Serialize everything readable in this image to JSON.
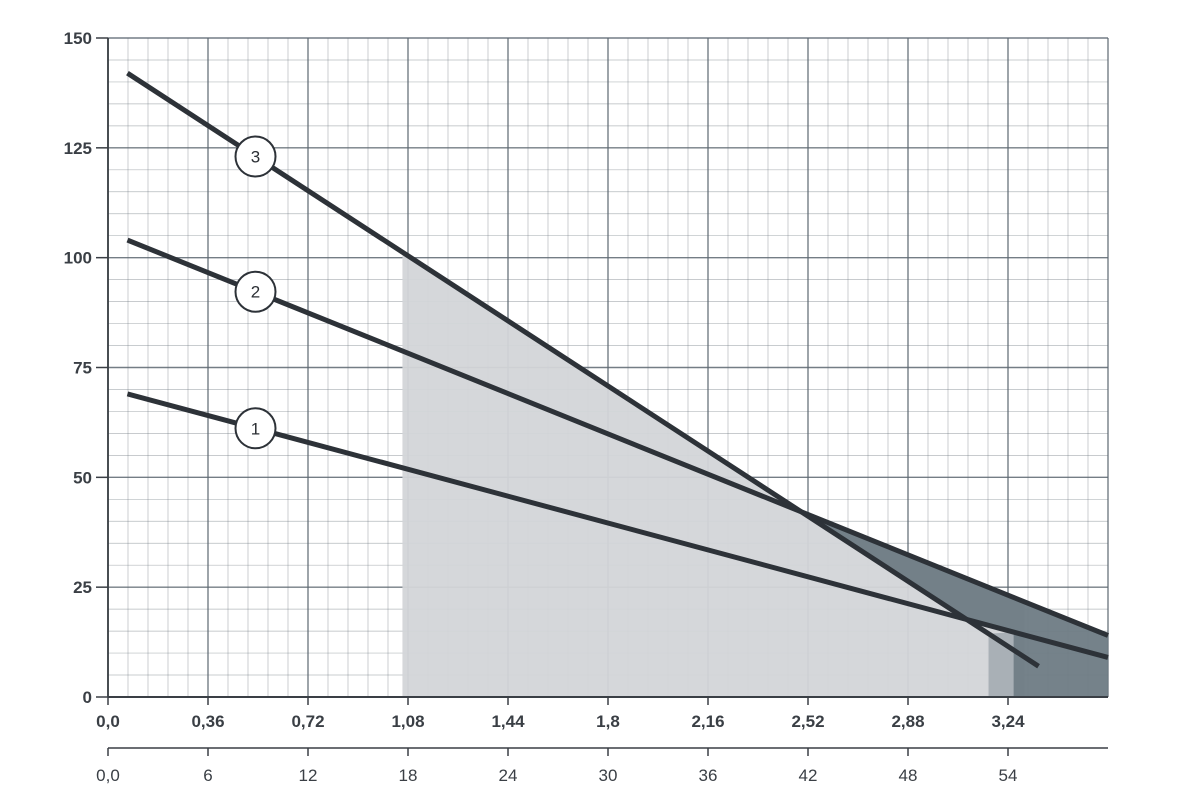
{
  "chart_data": {
    "type": "line",
    "title": "",
    "xlabel": "",
    "ylabel": "",
    "ylim": [
      0,
      150
    ],
    "y_ticks": [
      "0",
      "25",
      "50",
      "75",
      "100",
      "125",
      "150"
    ],
    "x_ticks_primary": [
      "0,0",
      "0,36",
      "0,72",
      "1,08",
      "1,44",
      "1,8",
      "2,16",
      "2,52",
      "2,88",
      "3,24"
    ],
    "x_ticks_secondary": [
      "0,0",
      "6",
      "12",
      "18",
      "24",
      "30",
      "36",
      "42",
      "48",
      "54"
    ],
    "xlim_primary": [
      0.0,
      3.6
    ],
    "xlim_secondary": [
      0,
      60
    ],
    "grid": true,
    "series": [
      {
        "name": "1",
        "x": [
          0.07,
          3.6
        ],
        "y": [
          69,
          9
        ]
      },
      {
        "name": "2",
        "x": [
          0.07,
          3.6
        ],
        "y": [
          104,
          14
        ]
      },
      {
        "name": "3",
        "x": [
          0.07,
          3.35
        ],
        "y": [
          142,
          7
        ]
      }
    ],
    "shaded_regions": [
      {
        "kind": "working range",
        "x_from": 1.06,
        "x_to": 3.3,
        "color": "#d3d5d8"
      },
      {
        "kind": "extended range",
        "x_from": 3.2,
        "x_to": 3.6,
        "color": "#6e7b84"
      }
    ],
    "colors": {
      "line": "#2d3238",
      "grid": "#5c6770",
      "light_shade": "#d3d5d8",
      "dark_shade": "#6e7b84",
      "text": "#3a3f45"
    }
  }
}
